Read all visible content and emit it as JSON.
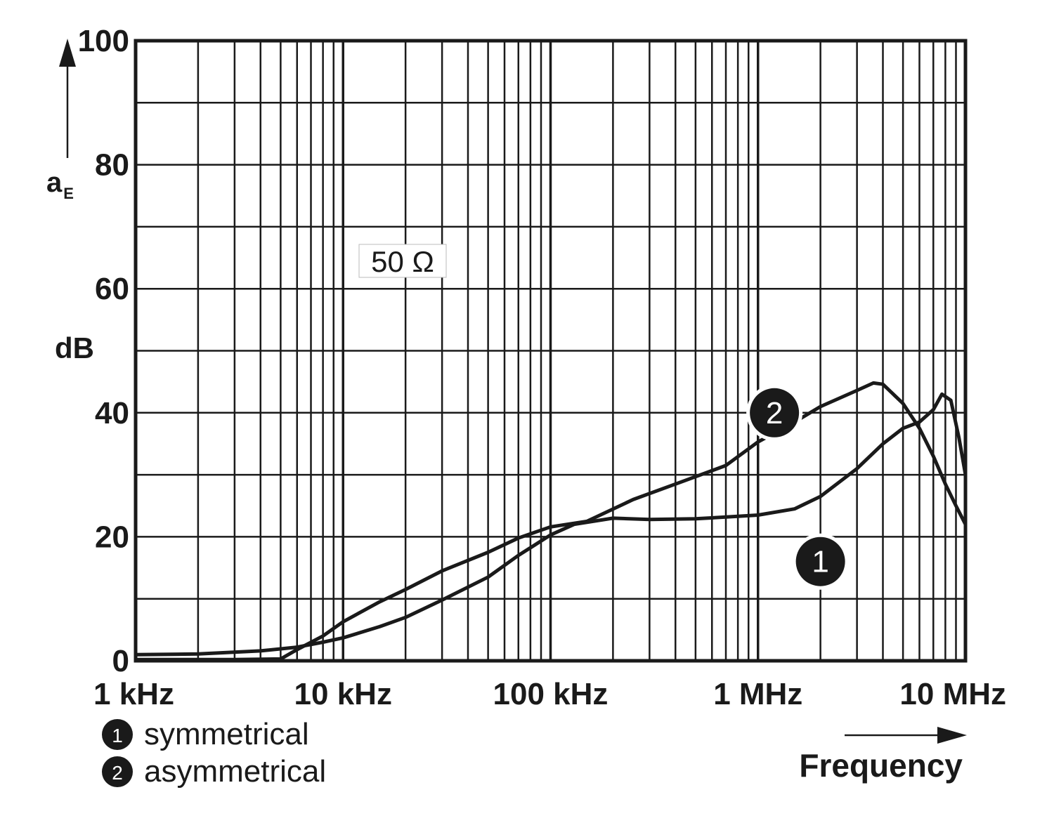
{
  "chart_data": {
    "type": "line",
    "x_scale": "log",
    "xlim": [
      1000,
      10000000
    ],
    "ylim": [
      0,
      100
    ],
    "grid": true,
    "ylabel_symbol": "a",
    "ylabel_subscript": "E",
    "ylabel_unit": "dB",
    "xlabel": "Frequency",
    "annotation": "50 Ω",
    "x_ticks": [
      {
        "value": 1000,
        "label": "1 kHz"
      },
      {
        "value": 10000,
        "label": "10 kHz"
      },
      {
        "value": 100000,
        "label": "100 kHz"
      },
      {
        "value": 1000000,
        "label": "1 MHz"
      },
      {
        "value": 10000000,
        "label": "10 MHz"
      }
    ],
    "y_ticks": [
      {
        "value": 0,
        "label": "0"
      },
      {
        "value": 20,
        "label": "20"
      },
      {
        "value": 40,
        "label": "40"
      },
      {
        "value": 60,
        "label": "60"
      },
      {
        "value": 80,
        "label": "80"
      },
      {
        "value": 100,
        "label": "100"
      }
    ],
    "series": [
      {
        "name": "symmetrical",
        "marker": "1",
        "points": [
          [
            1000,
            1.0
          ],
          [
            2000,
            1.1
          ],
          [
            4000,
            1.6
          ],
          [
            6000,
            2.2
          ],
          [
            8000,
            3.0
          ],
          [
            10000,
            3.7
          ],
          [
            15000,
            5.5
          ],
          [
            20000,
            7.0
          ],
          [
            30000,
            9.8
          ],
          [
            50000,
            13.5
          ],
          [
            70000,
            17.0
          ],
          [
            100000,
            20.3
          ],
          [
            130000,
            22.0
          ],
          [
            200000,
            23.0
          ],
          [
            300000,
            22.8
          ],
          [
            500000,
            22.9
          ],
          [
            800000,
            23.3
          ],
          [
            1000000,
            23.5
          ],
          [
            1500000,
            24.5
          ],
          [
            2000000,
            26.5
          ],
          [
            3000000,
            31.0
          ],
          [
            4000000,
            35.0
          ],
          [
            5000000,
            37.5
          ],
          [
            6000000,
            38.5
          ],
          [
            7000000,
            40.5
          ],
          [
            7700000,
            43.0
          ],
          [
            8500000,
            42.0
          ],
          [
            9300000,
            36.0
          ],
          [
            10000000,
            30.0
          ]
        ]
      },
      {
        "name": "asymmetrical",
        "marker": "2",
        "points": [
          [
            1000,
            0.2
          ],
          [
            3000,
            0.2
          ],
          [
            5000,
            0.3
          ],
          [
            6000,
            1.8
          ],
          [
            8000,
            4.0
          ],
          [
            10000,
            6.3
          ],
          [
            15000,
            9.5
          ],
          [
            20000,
            11.5
          ],
          [
            30000,
            14.5
          ],
          [
            50000,
            17.5
          ],
          [
            70000,
            19.8
          ],
          [
            100000,
            21.6
          ],
          [
            150000,
            22.5
          ],
          [
            250000,
            26.0
          ],
          [
            400000,
            28.5
          ],
          [
            700000,
            31.5
          ],
          [
            1000000,
            35.3
          ],
          [
            1500000,
            38.5
          ],
          [
            2000000,
            41.0
          ],
          [
            3000000,
            43.6
          ],
          [
            3600000,
            44.8
          ],
          [
            4000000,
            44.6
          ],
          [
            5000000,
            41.5
          ],
          [
            6000000,
            37.5
          ],
          [
            7000000,
            33.0
          ],
          [
            8000000,
            28.5
          ],
          [
            9000000,
            25.0
          ],
          [
            10000000,
            22.0
          ]
        ]
      }
    ],
    "legend": [
      {
        "marker": "1",
        "label": "symmetrical"
      },
      {
        "marker": "2",
        "label": "asymmetrical"
      }
    ],
    "legend_position": "bottom-left"
  }
}
